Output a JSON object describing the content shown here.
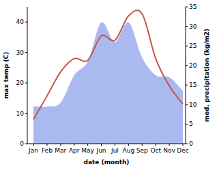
{
  "chart_data": {
    "type": "line",
    "x_label": "date (month)",
    "y_label": "max temp (C)",
    "y2_label": "med. precipitation (kg/m2)",
    "categories": [
      "Jan",
      "Feb",
      "Mar",
      "Apr",
      "May",
      "Jun",
      "Jul",
      "Aug",
      "Sep",
      "Oct",
      "Nov",
      "Dec"
    ],
    "ylim": [
      0,
      45
    ],
    "yticks": [
      0,
      10,
      20,
      30,
      40
    ],
    "y2lim": [
      0,
      35
    ],
    "y2ticks": [
      0,
      5,
      10,
      15,
      20,
      25,
      30,
      35
    ],
    "series": [
      {
        "type": "area",
        "axis": "y2",
        "color": "#aab9ef",
        "values": [
          9.6,
          9.5,
          10.5,
          17.5,
          21,
          31,
          26,
          31,
          22,
          17.5,
          17,
          13.5
        ]
      },
      {
        "type": "line",
        "color": "#c85250",
        "values": [
          8,
          15.7,
          23.6,
          28,
          27.4,
          35.5,
          34,
          42,
          42.7,
          28,
          19,
          13
        ]
      }
    ]
  }
}
